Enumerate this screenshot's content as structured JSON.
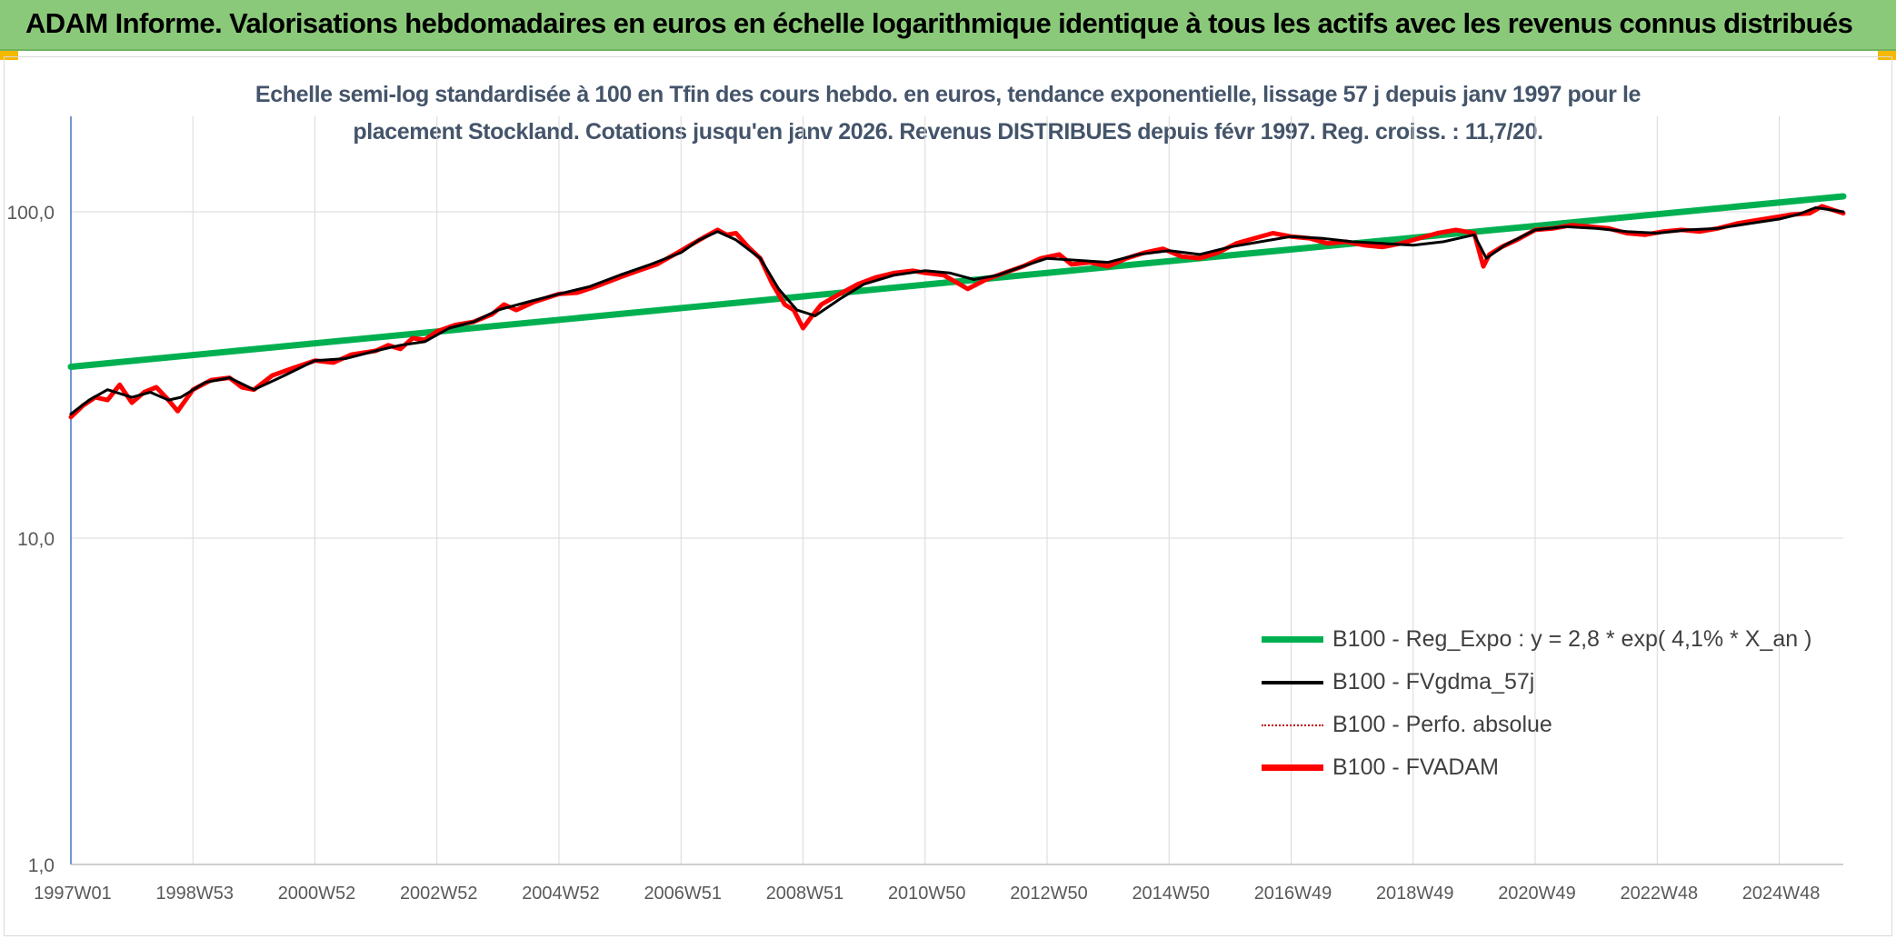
{
  "header": {
    "banner_title": "ADAM Informe. Valorisations hebdomadaires en euros en échelle logarithmique identique à tous les actifs avec les revenus connus distribués"
  },
  "colors": {
    "banner": "#8bc97a",
    "regression": "#00b050",
    "smoothed": "#000000",
    "absolute": "#c00000",
    "fvadam": "#ff0000",
    "subtitle": "#44546a"
  },
  "chart_data": {
    "type": "line",
    "subtitle_line1": "Echelle semi-log standardisée à 100 en Tfin des cours hebdo. en euros, tendance exponentielle, lissage 57 j depuis janv 1997 pour le",
    "subtitle_line2": "placement Stockland. Cotations jusqu'en janv 2026. Revenus DISTRIBUES depuis févr 1997. Reg. croiss. : 11,7/20.",
    "y_scale": "log",
    "ylim": [
      1,
      200
    ],
    "y_ticks": [
      {
        "value": 1,
        "label": "1,0"
      },
      {
        "value": 10,
        "label": "10,0"
      },
      {
        "value": 100,
        "label": "100,0"
      }
    ],
    "xlim": [
      1997.0,
      2026.05
    ],
    "x_ticks": [
      {
        "value": 1997.0,
        "label": "1997W01"
      },
      {
        "value": 1999.0,
        "label": "1998W53"
      },
      {
        "value": 2001.0,
        "label": "2000W52"
      },
      {
        "value": 2003.0,
        "label": "2002W52"
      },
      {
        "value": 2005.0,
        "label": "2004W52"
      },
      {
        "value": 2007.0,
        "label": "2006W51"
      },
      {
        "value": 2009.0,
        "label": "2008W51"
      },
      {
        "value": 2011.0,
        "label": "2010W50"
      },
      {
        "value": 2013.0,
        "label": "2012W50"
      },
      {
        "value": 2015.0,
        "label": "2014W50"
      },
      {
        "value": 2017.0,
        "label": "2016W49"
      },
      {
        "value": 2019.0,
        "label": "2018W49"
      },
      {
        "value": 2021.0,
        "label": "2020W49"
      },
      {
        "value": 2023.0,
        "label": "2022W48"
      },
      {
        "value": 2025.0,
        "label": "2024W48"
      }
    ],
    "grid": true,
    "legend_position": "bottom-right",
    "series": [
      {
        "name": "B100 - Reg_Expo : y = 2,8 * exp( 4,1% *  X_an )",
        "style": "regression",
        "x": [
          1997.0,
          2026.05
        ],
        "y": [
          33.5,
          111.5
        ]
      },
      {
        "name": "B100 - FVgdma_57j",
        "style": "smoothed",
        "x": [
          1997.0,
          1997.3,
          1997.6,
          1998.0,
          1998.3,
          1998.6,
          1998.8,
          1999.2,
          1999.6,
          2000.0,
          2000.5,
          2001.0,
          2001.5,
          2002.0,
          2002.4,
          2002.8,
          2003.2,
          2003.6,
          2004.0,
          2004.5,
          2005.0,
          2005.5,
          2006.0,
          2006.5,
          2007.0,
          2007.3,
          2007.6,
          2007.9,
          2008.3,
          2008.6,
          2008.9,
          2009.2,
          2009.6,
          2010.0,
          2010.5,
          2011.0,
          2011.4,
          2011.8,
          2012.2,
          2012.6,
          2013.0,
          2013.5,
          2014.0,
          2014.5,
          2015.0,
          2015.5,
          2016.0,
          2016.5,
          2017.0,
          2017.5,
          2018.0,
          2018.5,
          2019.0,
          2019.5,
          2020.0,
          2020.2,
          2020.5,
          2021.0,
          2021.5,
          2022.0,
          2022.5,
          2023.0,
          2023.5,
          2024.0,
          2024.5,
          2025.0,
          2025.3,
          2025.6,
          2026.05
        ],
        "y": [
          24,
          26.5,
          28.5,
          27,
          28,
          26.5,
          27,
          30,
          31,
          28.5,
          31.5,
          35,
          35.5,
          37.5,
          39,
          40,
          44,
          46,
          50,
          53,
          56,
          59,
          64,
          69,
          75,
          82,
          87,
          82,
          72,
          58,
          50,
          48,
          54,
          60,
          64,
          66,
          65,
          62,
          64,
          68,
          72,
          71,
          70,
          74,
          76,
          74,
          78,
          81,
          84,
          83,
          81,
          80,
          79,
          81,
          85,
          72,
          79,
          88,
          90,
          89,
          87,
          86,
          88,
          89,
          92,
          95,
          98,
          103,
          100
        ]
      },
      {
        "name": "B100 - Perfo. absolue",
        "style": "absolute",
        "x": [],
        "y": []
      },
      {
        "name": "B100 - FVADAM",
        "style": "fvadam",
        "x": [
          1997.0,
          1997.2,
          1997.4,
          1997.6,
          1997.8,
          1998.0,
          1998.2,
          1998.4,
          1998.6,
          1998.75,
          1999.0,
          1999.3,
          1999.6,
          1999.8,
          2000.0,
          2000.3,
          2000.6,
          2001.0,
          2001.3,
          2001.6,
          2002.0,
          2002.2,
          2002.4,
          2002.6,
          2002.8,
          2003.0,
          2003.3,
          2003.6,
          2003.9,
          2004.1,
          2004.3,
          2004.6,
          2005.0,
          2005.3,
          2005.6,
          2006.0,
          2006.3,
          2006.6,
          2007.0,
          2007.2,
          2007.4,
          2007.6,
          2007.75,
          2007.9,
          2008.1,
          2008.3,
          2008.5,
          2008.7,
          2008.85,
          2009.0,
          2009.15,
          2009.3,
          2009.6,
          2009.9,
          2010.2,
          2010.5,
          2010.8,
          2011.0,
          2011.3,
          2011.5,
          2011.7,
          2012.0,
          2012.3,
          2012.6,
          2012.9,
          2013.2,
          2013.4,
          2013.7,
          2014.0,
          2014.3,
          2014.6,
          2014.9,
          2015.2,
          2015.5,
          2015.8,
          2016.1,
          2016.4,
          2016.7,
          2017.0,
          2017.3,
          2017.6,
          2017.9,
          2018.2,
          2018.5,
          2018.8,
          2019.1,
          2019.4,
          2019.7,
          2020.0,
          2020.15,
          2020.25,
          2020.45,
          2020.7,
          2021.0,
          2021.3,
          2021.6,
          2021.9,
          2022.2,
          2022.5,
          2022.8,
          2023.1,
          2023.4,
          2023.7,
          2024.0,
          2024.3,
          2024.6,
          2024.9,
          2025.2,
          2025.5,
          2025.7,
          2025.9,
          2026.05
        ],
        "y": [
          23.5,
          25.5,
          27,
          26.5,
          29.5,
          26,
          28,
          29,
          26.5,
          24.5,
          28.5,
          30.5,
          31,
          29,
          28.5,
          31.5,
          33,
          35,
          34.5,
          36.5,
          37.5,
          39,
          38,
          41,
          40.5,
          43,
          45,
          46,
          48.5,
          52,
          50,
          53,
          56,
          56.5,
          59,
          63,
          66,
          69,
          76,
          80,
          84,
          88,
          85,
          86,
          78,
          72,
          60,
          52,
          50,
          44,
          48,
          52,
          56,
          60,
          63,
          65,
          66,
          65,
          64,
          61,
          58,
          62,
          65,
          68,
          72,
          74,
          69,
          70,
          68,
          72,
          75,
          77,
          73,
          72,
          75,
          80,
          83,
          86,
          84,
          83,
          80,
          81,
          79,
          78,
          80,
          83,
          86,
          88,
          86,
          68,
          74,
          78,
          82,
          88,
          89,
          91,
          90,
          89,
          86,
          85,
          87,
          88,
          87,
          89,
          92,
          94,
          96,
          98,
          99,
          104,
          101,
          99
        ]
      }
    ]
  }
}
